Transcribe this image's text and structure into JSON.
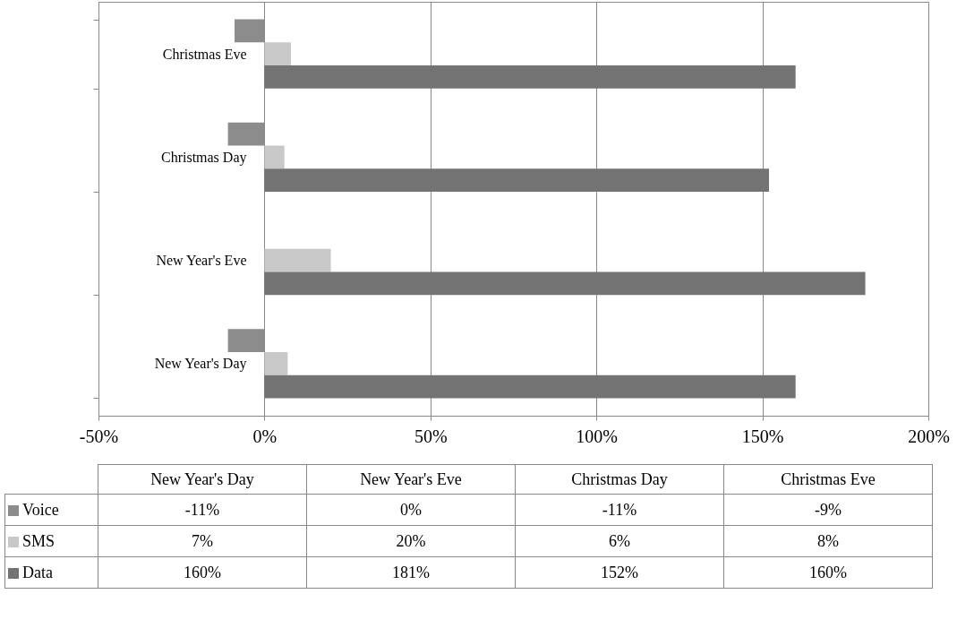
{
  "chart_data": {
    "type": "bar",
    "orientation": "horizontal",
    "categories": [
      "Christmas Eve",
      "Christmas Day",
      "New Year's Eve",
      "New Year's Day"
    ],
    "series": [
      {
        "name": "Voice",
        "color": "#8c8c8c",
        "values": [
          -9,
          -11,
          0,
          -11
        ]
      },
      {
        "name": "SMS",
        "color": "#c8c8c8",
        "values": [
          8,
          6,
          20,
          7
        ]
      },
      {
        "name": "Data",
        "color": "#737373",
        "values": [
          160,
          152,
          181,
          160
        ]
      }
    ],
    "xlim": [
      -50,
      200
    ],
    "xticks": [
      {
        "value": -50,
        "label": "-50%"
      },
      {
        "value": 0,
        "label": "0%"
      },
      {
        "value": 50,
        "label": "50%"
      },
      {
        "value": 100,
        "label": "100%"
      },
      {
        "value": 150,
        "label": "150%"
      },
      {
        "value": 200,
        "label": "200%"
      }
    ],
    "grid": "x",
    "legend": "bottom",
    "annotations": [
      "-11%",
      "0%",
      "-11%",
      "-9%",
      "7%",
      "20%",
      "6%",
      "8%",
      "160%",
      "181%",
      "152%",
      "160%"
    ]
  }
}
